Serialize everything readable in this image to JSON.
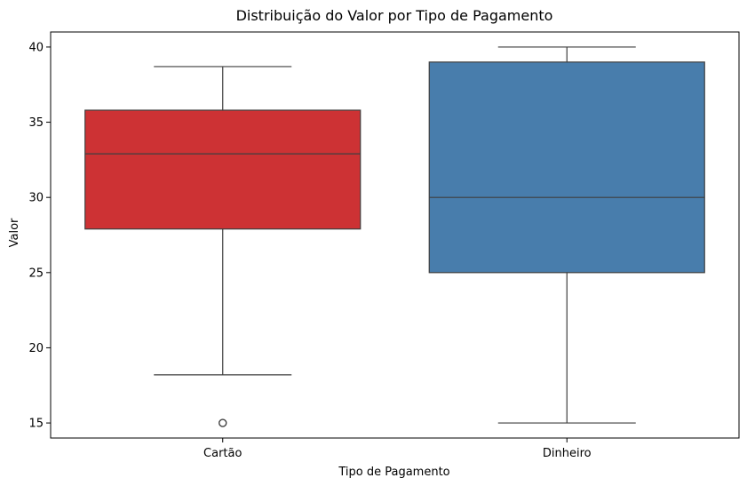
{
  "chart_data": {
    "type": "box",
    "title": "Distribuição do Valor por Tipo de Pagamento",
    "xlabel": "Tipo de Pagamento",
    "ylabel": "Valor",
    "categories": [
      "Cartão",
      "Dinheiro"
    ],
    "ylim": [
      14.0,
      41.0
    ],
    "yticks": [
      15,
      20,
      25,
      30,
      35,
      40
    ],
    "grid": false,
    "boxes": [
      {
        "category": "Cartão",
        "whisker_low": 18.2,
        "q1": 27.9,
        "median": 32.9,
        "q3": 35.8,
        "whisker_high": 38.7,
        "outliers": [
          15.0
        ],
        "color": "#cd3234"
      },
      {
        "category": "Dinheiro",
        "whisker_low": 15.0,
        "q1": 25.0,
        "median": 30.0,
        "q3": 39.0,
        "whisker_high": 40.0,
        "outliers": [],
        "color": "#487dac"
      }
    ]
  }
}
